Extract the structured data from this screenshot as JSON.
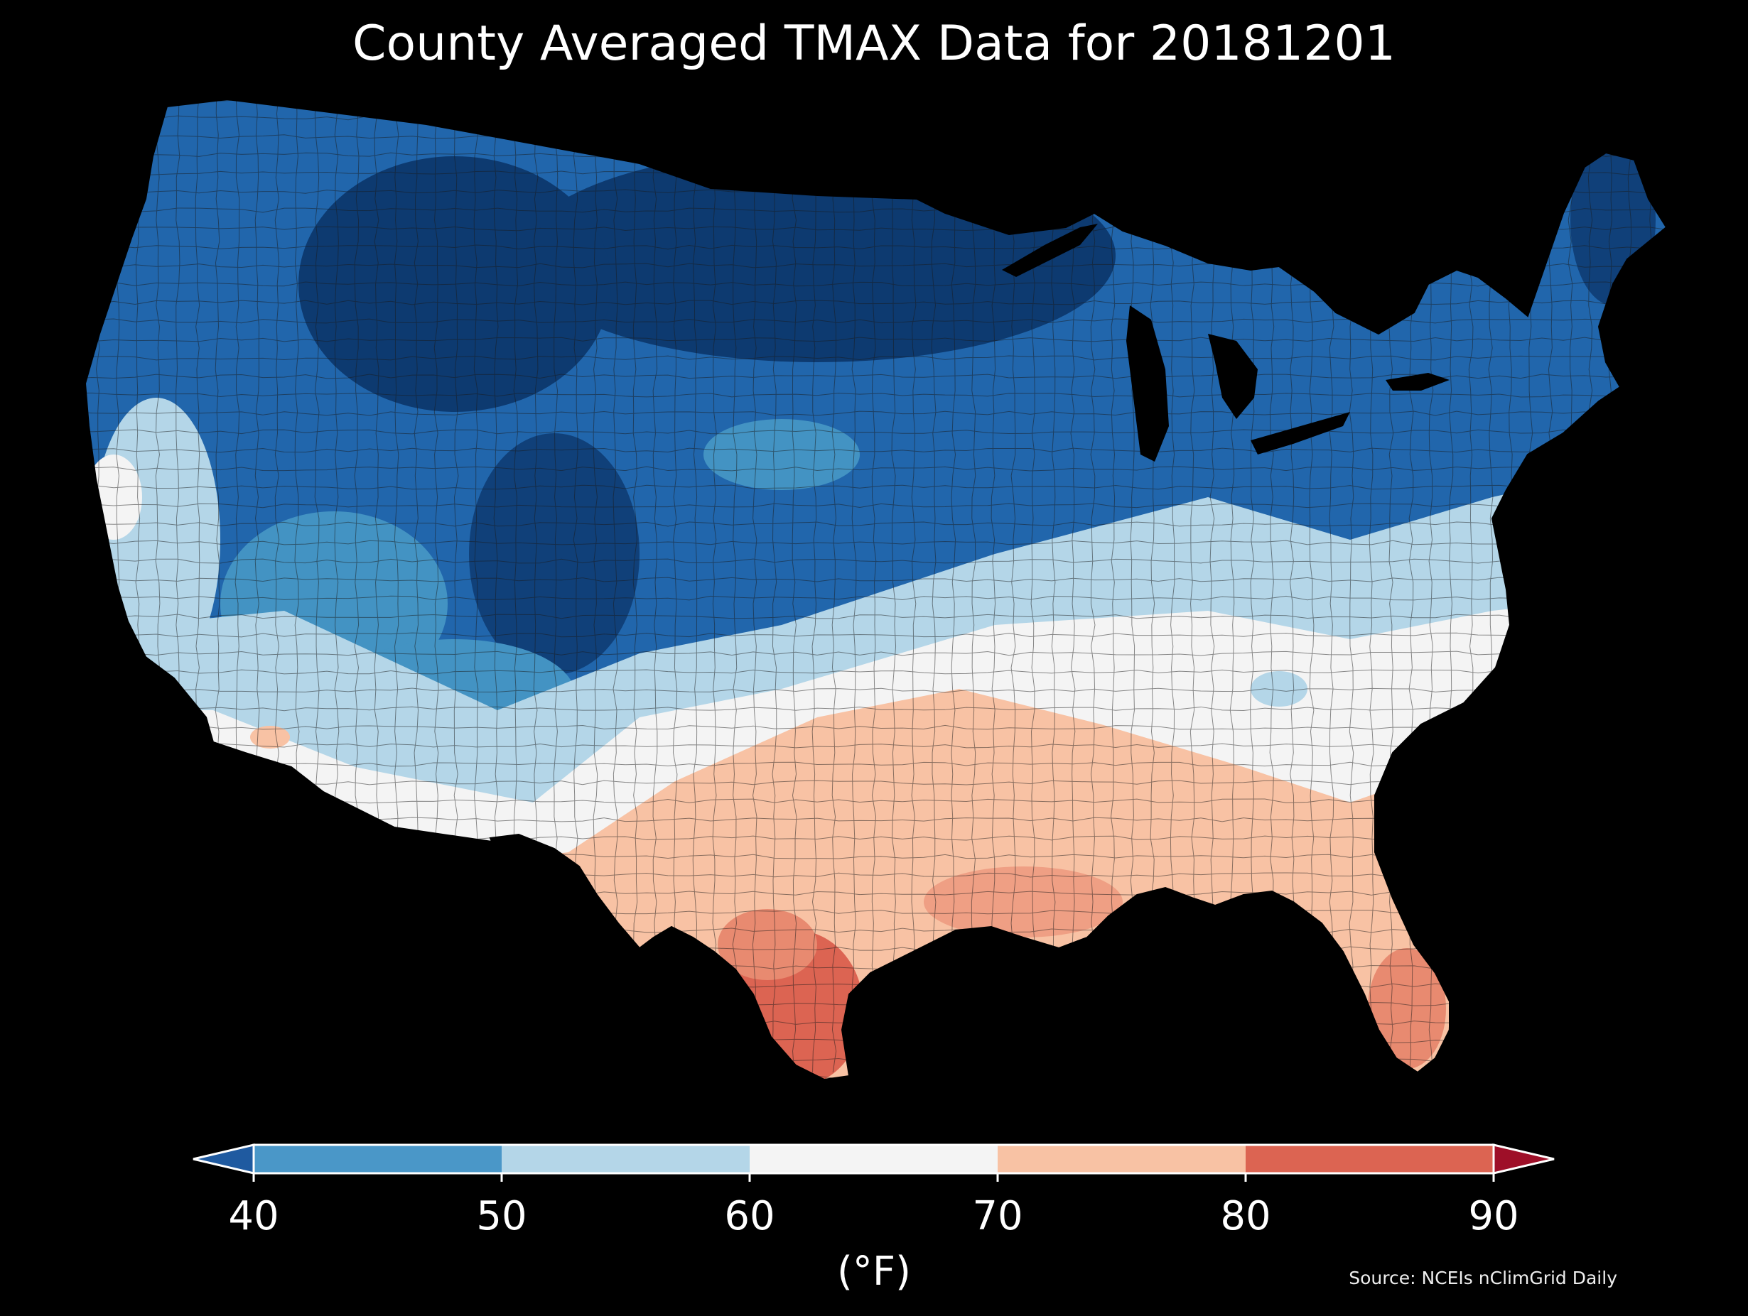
{
  "title": "County Averaged TMAX Data for 20181201",
  "colorbar": {
    "units_label": "(°F)",
    "ticks": [
      "40",
      "50",
      "60",
      "70",
      "80",
      "90"
    ],
    "bins": [
      {
        "range": "<40",
        "color": "#1f5aa0"
      },
      {
        "range": "40-50",
        "color": "#4a97c8"
      },
      {
        "range": "50-60",
        "color": "#b4d6e8"
      },
      {
        "range": "60-70",
        "color": "#f4f4f4"
      },
      {
        "range": "70-80",
        "color": "#f8c2a4"
      },
      {
        "range": "80-90",
        "color": "#dc6452"
      },
      {
        "range": ">90",
        "color": "#9e0f28"
      }
    ]
  },
  "source": "Source: NCEIs nClimGrid Daily",
  "map": {
    "region": "Contiguous United States",
    "variable": "TMAX",
    "background_color": "#000000",
    "colors": {
      "deep_blue": "#0d3a70",
      "blue": "#2166ac",
      "mid_blue": "#4393c3",
      "light_blue": "#b4d6e8",
      "white": "#f4f4f4",
      "light_red": "#f8c2a4",
      "red": "#dc6452"
    }
  }
}
